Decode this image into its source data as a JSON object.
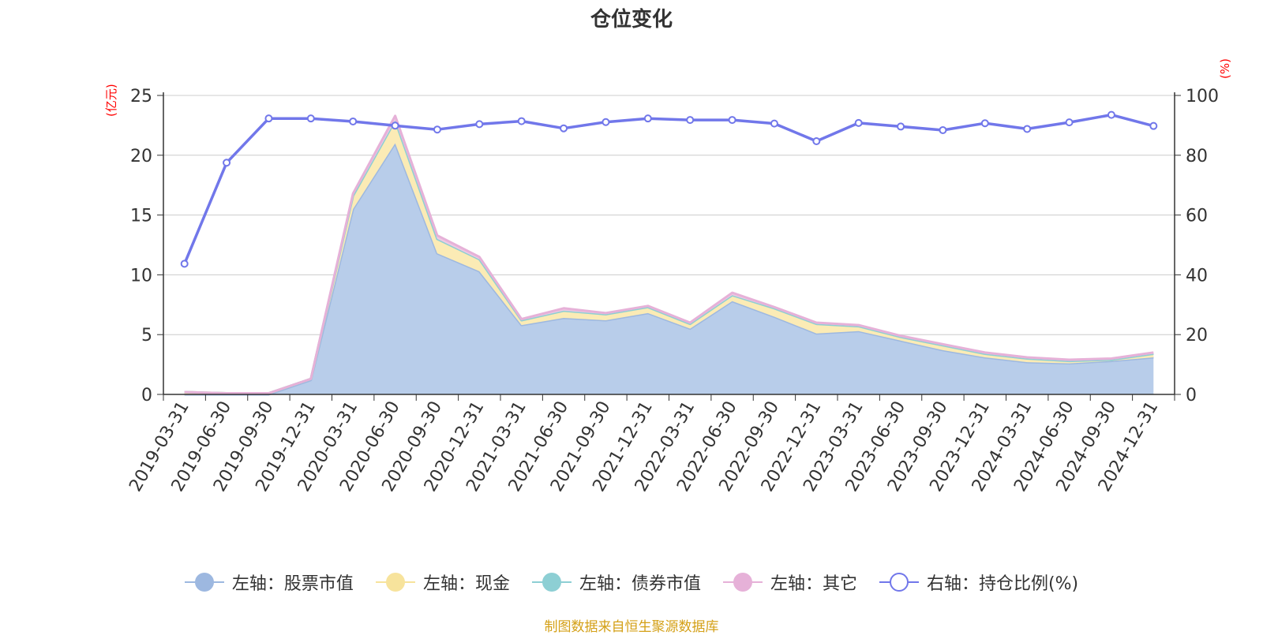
{
  "chart_data": {
    "type": "area",
    "title": "仓位变化",
    "source_note": "制图数据来自恒生聚源数据库",
    "left_unit": "(亿元)",
    "right_unit": "(%)",
    "categories": [
      "2019-03-31",
      "2019-06-30",
      "2019-09-30",
      "2019-12-31",
      "2020-03-31",
      "2020-06-30",
      "2020-09-30",
      "2020-12-31",
      "2021-03-31",
      "2021-06-30",
      "2021-09-30",
      "2021-12-31",
      "2022-03-31",
      "2022-06-30",
      "2022-09-30",
      "2022-12-31",
      "2023-03-31",
      "2023-06-30",
      "2023-09-30",
      "2023-12-31",
      "2024-03-31",
      "2024-06-30",
      "2024-09-30",
      "2024-12-31"
    ],
    "left_axis": {
      "min": 0,
      "max": 25,
      "ticks": [
        0,
        5,
        10,
        15,
        20,
        25
      ]
    },
    "right_axis": {
      "min": 0,
      "max": 100,
      "ticks": [
        0,
        20,
        40,
        60,
        80,
        100
      ]
    },
    "grid": true,
    "legend_position": "bottom",
    "series": [
      {
        "name": "左轴：股票市值",
        "axis": "left",
        "stack": true,
        "color": "#9db8e0",
        "fill": "#b8cdea",
        "values": [
          0.0,
          0.0,
          0.0,
          1.2,
          15.5,
          21.0,
          11.8,
          10.3,
          5.8,
          6.4,
          6.2,
          6.8,
          5.5,
          7.8,
          6.5,
          5.1,
          5.3,
          4.5,
          3.7,
          3.1,
          2.7,
          2.6,
          2.8,
          3.1
        ]
      },
      {
        "name": "左轴：现金",
        "axis": "left",
        "stack": true,
        "color": "#f7e39c",
        "fill": "#fbebb5",
        "values": [
          0.2,
          0.1,
          0.1,
          0.1,
          1.1,
          1.9,
          1.2,
          1.0,
          0.4,
          0.6,
          0.5,
          0.5,
          0.4,
          0.5,
          0.7,
          0.8,
          0.4,
          0.3,
          0.4,
          0.3,
          0.3,
          0.2,
          0.1,
          0.3
        ]
      },
      {
        "name": "左轴：债券市值",
        "axis": "left",
        "stack": true,
        "color": "#8dcfd4",
        "fill": "#b6e2e5",
        "values": [
          0,
          0,
          0,
          0,
          0,
          0,
          0,
          0,
          0,
          0,
          0,
          0,
          0,
          0,
          0,
          0,
          0,
          0,
          0,
          0,
          0,
          0,
          0,
          0
        ]
      },
      {
        "name": "左轴：其它",
        "axis": "left",
        "stack": true,
        "color": "#e6b1d8",
        "fill": "#efc9e3",
        "values": [
          0.0,
          0.0,
          0.0,
          0.0,
          0.2,
          0.4,
          0.3,
          0.2,
          0.1,
          0.2,
          0.1,
          0.1,
          0.1,
          0.2,
          0.1,
          0.1,
          0.1,
          0.1,
          0.1,
          0.1,
          0.1,
          0.1,
          0.1,
          0.1
        ]
      },
      {
        "name": "右轴：持仓比例(%)",
        "axis": "right",
        "stack": false,
        "color": "#7177ea",
        "marker": "hollow-circle",
        "values": [
          43.7,
          77.5,
          92.3,
          92.3,
          91.3,
          89.9,
          88.6,
          90.4,
          91.4,
          89.0,
          91.1,
          92.3,
          91.8,
          91.8,
          90.6,
          84.7,
          90.8,
          89.6,
          88.4,
          90.7,
          88.8,
          91.0,
          93.5,
          89.8
        ]
      }
    ]
  }
}
